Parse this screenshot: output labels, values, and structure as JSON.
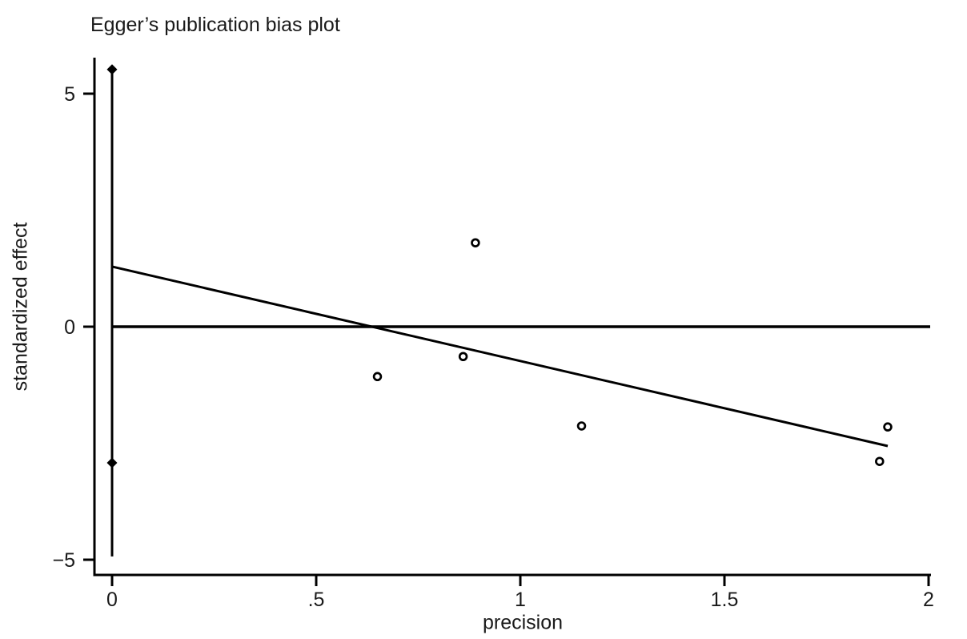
{
  "figure": {
    "background": "#ffffff",
    "text_color": "#1a1a1a",
    "line_color": "#000000"
  },
  "chart_data": {
    "type": "scatter",
    "title": "Egger’s publication bias plot",
    "xlabel": "precision",
    "ylabel": "standardized effect",
    "xlim": [
      0,
      2
    ],
    "ylim": [
      -5,
      5.6
    ],
    "grid": false,
    "legend": null,
    "x_ticks": [
      {
        "value": 0,
        "label": "0"
      },
      {
        "value": 0.5,
        "label": ".5"
      },
      {
        "value": 1,
        "label": "1"
      },
      {
        "value": 1.5,
        "label": "1.5"
      },
      {
        "value": 2,
        "label": "2"
      }
    ],
    "y_ticks": [
      {
        "value": 5,
        "label": "5"
      },
      {
        "value": 0,
        "label": "0"
      },
      {
        "value": -5,
        "label": "−5"
      }
    ],
    "points": [
      {
        "x": 0.89,
        "y": 1.8
      },
      {
        "x": 0.86,
        "y": -0.64
      },
      {
        "x": 0.65,
        "y": -1.07
      },
      {
        "x": 1.15,
        "y": -2.13
      },
      {
        "x": 1.9,
        "y": -2.15
      },
      {
        "x": 1.88,
        "y": -2.89
      }
    ],
    "zero_reference_line": {
      "y": 0,
      "x_start": 0,
      "x_end": 2.0
    },
    "regression_line": {
      "x_start": 0,
      "y_start": 1.29,
      "x_end": 1.9,
      "y_end": -2.56
    },
    "ci_line_at_x0": {
      "x": 0,
      "y_start": -4.93,
      "y_end": 5.52,
      "diamond_markers_y": [
        5.52,
        -2.92
      ]
    }
  }
}
